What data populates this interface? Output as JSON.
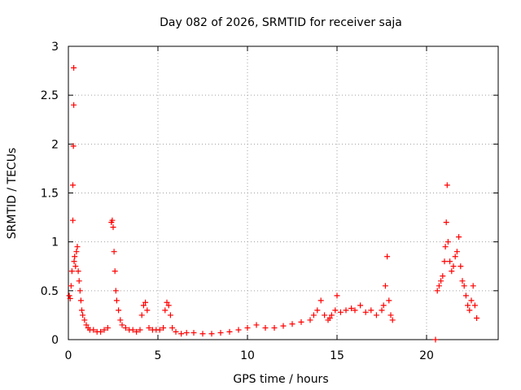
{
  "chart_data": {
    "type": "scatter",
    "title": "Day 082 of 2026, SRMTID for receiver saja",
    "xlabel": "GPS time / hours",
    "ylabel": "SRMTID / TECUs",
    "xlim": [
      0,
      24
    ],
    "ylim": [
      0,
      3
    ],
    "grid": true,
    "xticks": [
      0,
      5,
      10,
      15,
      20
    ],
    "xtick_labels": [
      "0",
      "5",
      "10",
      "15",
      "20"
    ],
    "yticks": [
      0,
      0.5,
      1,
      1.5,
      2,
      2.5,
      3
    ],
    "ytick_labels": [
      "0",
      "0.5",
      "1",
      "1.5",
      "2",
      "2.5",
      "3"
    ],
    "marker": "+",
    "color": "#ff0000",
    "series": [
      {
        "name": "SRMTID",
        "x": [
          0.05,
          0.1,
          0.15,
          0.2,
          0.25,
          0.25,
          0.28,
          0.3,
          0.3,
          0.32,
          0.35,
          0.4,
          0.45,
          0.5,
          0.55,
          0.6,
          0.65,
          0.7,
          0.75,
          0.8,
          0.9,
          1.0,
          1.1,
          1.2,
          1.4,
          1.6,
          1.8,
          2.0,
          2.2,
          2.4,
          2.45,
          2.5,
          2.55,
          2.6,
          2.65,
          2.7,
          2.8,
          2.9,
          3.0,
          3.2,
          3.4,
          3.6,
          3.8,
          4.0,
          4.1,
          4.2,
          4.3,
          4.4,
          4.5,
          4.7,
          4.9,
          5.1,
          5.3,
          5.4,
          5.5,
          5.6,
          5.7,
          5.8,
          6.0,
          6.3,
          6.6,
          7.0,
          7.5,
          8.0,
          8.5,
          9.0,
          9.5,
          10.0,
          10.5,
          11.0,
          11.5,
          12.0,
          12.5,
          13.0,
          13.5,
          13.7,
          13.9,
          14.1,
          14.3,
          14.5,
          14.6,
          14.7,
          14.9,
          15.0,
          15.2,
          15.5,
          15.8,
          16.0,
          16.3,
          16.6,
          16.9,
          17.2,
          17.5,
          17.6,
          17.7,
          17.8,
          17.9,
          18.0,
          18.1,
          20.5,
          20.6,
          20.7,
          20.8,
          20.9,
          21.0,
          21.05,
          21.1,
          21.15,
          21.2,
          21.3,
          21.4,
          21.5,
          21.6,
          21.7,
          21.8,
          21.9,
          22.0,
          22.1,
          22.2,
          22.3,
          22.4,
          22.5,
          22.6,
          22.7,
          22.8
        ],
        "y": [
          0.45,
          0.42,
          0.55,
          0.7,
          1.22,
          1.58,
          1.98,
          2.4,
          2.78,
          0.8,
          0.85,
          0.75,
          0.9,
          0.95,
          0.7,
          0.6,
          0.5,
          0.4,
          0.3,
          0.25,
          0.2,
          0.15,
          0.12,
          0.1,
          0.1,
          0.08,
          0.08,
          0.1,
          0.12,
          1.2,
          1.22,
          1.15,
          0.9,
          0.7,
          0.5,
          0.4,
          0.3,
          0.2,
          0.15,
          0.12,
          0.1,
          0.1,
          0.08,
          0.1,
          0.25,
          0.35,
          0.38,
          0.3,
          0.12,
          0.1,
          0.1,
          0.1,
          0.12,
          0.3,
          0.38,
          0.35,
          0.25,
          0.12,
          0.08,
          0.06,
          0.07,
          0.07,
          0.06,
          0.06,
          0.07,
          0.08,
          0.1,
          0.12,
          0.15,
          0.12,
          0.12,
          0.14,
          0.16,
          0.18,
          0.2,
          0.25,
          0.3,
          0.4,
          0.25,
          0.2,
          0.22,
          0.25,
          0.3,
          0.45,
          0.28,
          0.3,
          0.32,
          0.3,
          0.35,
          0.28,
          0.3,
          0.25,
          0.3,
          0.35,
          0.55,
          0.85,
          0.4,
          0.25,
          0.2,
          0.0,
          0.5,
          0.55,
          0.6,
          0.65,
          0.8,
          0.95,
          1.2,
          1.58,
          1.0,
          0.8,
          0.7,
          0.75,
          0.85,
          0.9,
          1.05,
          0.75,
          0.6,
          0.55,
          0.45,
          0.35,
          0.3,
          0.4,
          0.55,
          0.35,
          0.22
        ]
      }
    ]
  }
}
